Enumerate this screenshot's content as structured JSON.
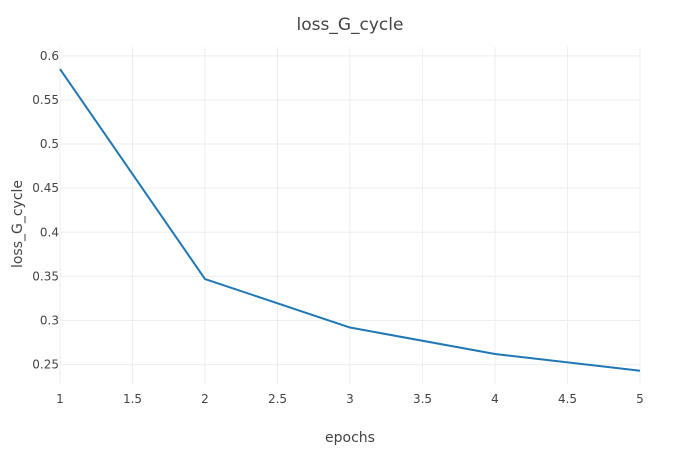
{
  "chart_data": {
    "type": "line",
    "title": "loss_G_cycle",
    "xlabel": "epochs",
    "ylabel": "loss_G_cycle",
    "x": [
      1,
      2,
      3,
      4,
      5
    ],
    "series": [
      {
        "values": [
          0.585,
          0.347,
          0.292,
          0.262,
          0.243
        ]
      }
    ],
    "xlim": [
      1,
      5
    ],
    "ylim": [
      0.228,
      0.61
    ],
    "xticks": [
      1,
      1.5,
      2,
      2.5,
      3,
      3.5,
      4,
      4.5,
      5
    ],
    "xtick_labels": [
      "1",
      "1.5",
      "2",
      "2.5",
      "3",
      "3.5",
      "4",
      "4.5",
      "5"
    ],
    "yticks": [
      0.25,
      0.3,
      0.35,
      0.4,
      0.45,
      0.5,
      0.55,
      0.6
    ],
    "ytick_labels": [
      "0.25",
      "0.3",
      "0.35",
      "0.4",
      "0.45",
      "0.5",
      "0.55",
      "0.6"
    ],
    "grid": true,
    "line_color": "#1f77b4",
    "grid_color": "#eeeeee"
  }
}
